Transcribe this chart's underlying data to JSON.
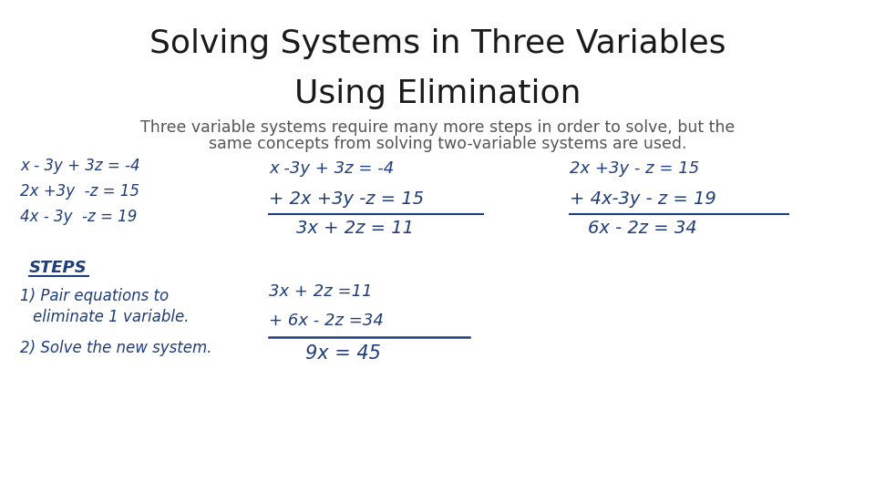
{
  "background_color": "#ffffff",
  "title_line1": "Solving Systems in Three Variables",
  "title_line2": "Using Elimination",
  "title_fontsize": 26,
  "title_color": "#1a1a1a",
  "subtitle_line1": "Three variable systems require many more steps in order to solve, but the",
  "subtitle_line2": "    same concepts from solving two-variable systems are used.",
  "subtitle_fontsize": 12.5,
  "subtitle_color": "#555555",
  "handwriting_color": "#1f3d7a",
  "sys_eq1": "x - 3y + 3z = -4",
  "sys_eq2": "2x +3y  -z = 15",
  "sys_eq3": "4x - 3y  -z = 19",
  "steps_label": "STEPS",
  "step1_line1": "1) Pair equations to",
  "step1_line2": "    eliminate 1 variable.",
  "step2": "2) Solve the new system.",
  "col2_eq1": "x -3y + 3z = -4",
  "col2_eq2": "+ 2x +3y -z = 15",
  "col2_result": "3x + 2z = 11",
  "col3_eq1": "2x +3y - z = 15",
  "col3_eq2": "+ 4x-3y - z = 19",
  "col3_result": "6x - 2z = 34",
  "col2b_eq1": "3x + 2z =11",
  "col2b_eq2": "+ 6x - 2z =34",
  "col2b_result": "9x = 45"
}
